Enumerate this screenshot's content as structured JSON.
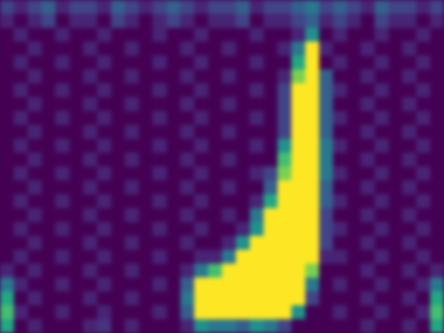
{
  "chart_data": {
    "type": "heatmap",
    "tick_labels": false,
    "color": "viridis",
    "color_range": [
      0,
      1
    ],
    "cells": [
      [
        0.2,
        0.1,
        0.2,
        0.3,
        0.1,
        0.2,
        0.2,
        0.1,
        0.3,
        0.2,
        0.1,
        0.2,
        0.3,
        0.2,
        0.1,
        0.2,
        0.2,
        0.3,
        0.1,
        0.2,
        0.2,
        0.3,
        0.4,
        0.2,
        0.3,
        0.2,
        0.1,
        0.3,
        0.2,
        0.2,
        0.1,
        0.2
      ],
      [
        0.1,
        0,
        0.1,
        0.2,
        0,
        0.1,
        0.1,
        0,
        0.2,
        0.1,
        0,
        0.1,
        0.2,
        0.1,
        0,
        0.1,
        0.1,
        0.2,
        0,
        0.1,
        0.1,
        0.2,
        0.3,
        0.1,
        0.2,
        0.1,
        0,
        0.2,
        0.1,
        0.1,
        0,
        0.1
      ],
      [
        0,
        0.1,
        0,
        0,
        0.1,
        0,
        0,
        0.1,
        0,
        0,
        0,
        0.1,
        0,
        0,
        0.1,
        0,
        0,
        0,
        0.1,
        0,
        0,
        0.1,
        0.5,
        0,
        0.1,
        0,
        0,
        0.1,
        0,
        0,
        0.1,
        0
      ],
      [
        0,
        0,
        0.1,
        0,
        0,
        0,
        0.1,
        0,
        0,
        0.1,
        0,
        0,
        0,
        0.1,
        0,
        0,
        0.1,
        0,
        0,
        0,
        0.1,
        0.4,
        1,
        0.1,
        0,
        0,
        0.1,
        0,
        0,
        0.1,
        0,
        0
      ],
      [
        0,
        0.1,
        0,
        0,
        0.1,
        0,
        0,
        0.1,
        0,
        0,
        0,
        0.1,
        0,
        0,
        0.1,
        0,
        0,
        0,
        0.1,
        0,
        0,
        0.6,
        1,
        0,
        0.1,
        0,
        0,
        0.1,
        0,
        0,
        0.1,
        0
      ],
      [
        0,
        0,
        0.1,
        0,
        0,
        0,
        0.1,
        0,
        0,
        0.1,
        0,
        0,
        0,
        0.1,
        0,
        0,
        0.1,
        0,
        0,
        0,
        0.1,
        0.8,
        1,
        0.3,
        0,
        0,
        0.1,
        0,
        0,
        0.1,
        0,
        0
      ],
      [
        0,
        0.1,
        0,
        0,
        0.1,
        0,
        0,
        0.1,
        0,
        0,
        0,
        0.1,
        0,
        0,
        0.1,
        0,
        0,
        0,
        0.1,
        0,
        0.2,
        1,
        1,
        0.3,
        0.1,
        0,
        0,
        0.1,
        0,
        0,
        0.1,
        0
      ],
      [
        0,
        0,
        0.1,
        0,
        0,
        0,
        0.1,
        0,
        0,
        0.1,
        0,
        0,
        0,
        0.1,
        0,
        0,
        0.1,
        0,
        0,
        0,
        0.2,
        1,
        1,
        0.3,
        0,
        0,
        0.1,
        0,
        0,
        0.1,
        0,
        0
      ],
      [
        0,
        0.1,
        0,
        0,
        0.1,
        0,
        0,
        0.1,
        0,
        0,
        0,
        0.1,
        0,
        0,
        0.1,
        0,
        0,
        0,
        0.1,
        0,
        0.2,
        1,
        1,
        0.3,
        0.1,
        0,
        0,
        0.1,
        0,
        0,
        0.1,
        0
      ],
      [
        0,
        0,
        0.1,
        0,
        0,
        0,
        0.1,
        0,
        0,
        0.1,
        0,
        0,
        0,
        0.1,
        0,
        0,
        0.1,
        0,
        0,
        0,
        0.2,
        1,
        1,
        0.3,
        0,
        0,
        0.1,
        0,
        0,
        0.1,
        0,
        0
      ],
      [
        0,
        0.1,
        0,
        0,
        0.1,
        0,
        0,
        0.1,
        0,
        0,
        0,
        0.1,
        0,
        0,
        0.1,
        0,
        0,
        0,
        0.1,
        0,
        0.5,
        1,
        1,
        0.4,
        0.1,
        0,
        0,
        0.1,
        0,
        0,
        0.1,
        0
      ],
      [
        0,
        0,
        0.1,
        0,
        0,
        0,
        0.1,
        0,
        0,
        0.1,
        0,
        0,
        0,
        0.1,
        0,
        0,
        0.1,
        0,
        0,
        0,
        0.7,
        1,
        1,
        0.4,
        0,
        0,
        0.1,
        0,
        0,
        0.1,
        0,
        0
      ],
      [
        0,
        0.1,
        0,
        0,
        0.1,
        0,
        0,
        0.1,
        0,
        0,
        0,
        0.1,
        0,
        0,
        0.1,
        0,
        0,
        0,
        0.1,
        0.2,
        0.8,
        1,
        1,
        0.4,
        0.1,
        0,
        0,
        0.1,
        0,
        0,
        0.1,
        0
      ],
      [
        0,
        0,
        0.1,
        0,
        0,
        0,
        0.1,
        0,
        0,
        0.1,
        0,
        0,
        0,
        0.1,
        0,
        0,
        0.1,
        0,
        0,
        0.3,
        1,
        1,
        1,
        0.3,
        0,
        0,
        0.1,
        0,
        0,
        0.1,
        0,
        0
      ],
      [
        0,
        0.1,
        0,
        0,
        0.1,
        0,
        0,
        0.1,
        0,
        0,
        0,
        0.1,
        0,
        0,
        0.1,
        0,
        0,
        0,
        0.1,
        0.6,
        1,
        1,
        1,
        0.3,
        0.1,
        0,
        0,
        0.1,
        0,
        0,
        0.1,
        0
      ],
      [
        0,
        0,
        0.1,
        0,
        0,
        0,
        0.1,
        0,
        0,
        0.1,
        0,
        0,
        0,
        0.1,
        0,
        0,
        0.1,
        0,
        0.4,
        1,
        1,
        1,
        1,
        0.2,
        0,
        0,
        0.1,
        0,
        0,
        0.1,
        0,
        0
      ],
      [
        0,
        0.1,
        0,
        0,
        0.1,
        0,
        0,
        0.1,
        0,
        0,
        0,
        0.1,
        0,
        0,
        0.1,
        0,
        0,
        0.1,
        0.5,
        1,
        1,
        1,
        1,
        0.2,
        0.1,
        0,
        0,
        0.1,
        0,
        0,
        0.1,
        0
      ],
      [
        0,
        0,
        0.1,
        0,
        0,
        0,
        0.1,
        0,
        0,
        0.1,
        0,
        0,
        0,
        0.1,
        0,
        0,
        0.1,
        0.5,
        1,
        1,
        1,
        1,
        1,
        0.2,
        0,
        0,
        0.1,
        0,
        0,
        0.1,
        0,
        0
      ],
      [
        0,
        0.1,
        0,
        0,
        0.1,
        0,
        0,
        0.1,
        0,
        0,
        0,
        0.1,
        0,
        0,
        0.1,
        0.1,
        0.4,
        1,
        1,
        1,
        1,
        1,
        1,
        0.1,
        0.1,
        0,
        0,
        0.1,
        0,
        0,
        0.1,
        0
      ],
      [
        0.1,
        0,
        0.1,
        0,
        0,
        0,
        0.1,
        0,
        0,
        0.1,
        0,
        0,
        0,
        0.1,
        0.4,
        0.7,
        1,
        1,
        1,
        1,
        1,
        1,
        0.8,
        0,
        0,
        0,
        0.1,
        0,
        0,
        0.1,
        0,
        0.1
      ],
      [
        0.4,
        0.1,
        0,
        0,
        0.1,
        0,
        0,
        0.1,
        0,
        0,
        0,
        0.1,
        0,
        0.3,
        1,
        1,
        1,
        1,
        1,
        1,
        1,
        1,
        0.4,
        0,
        0.1,
        0,
        0,
        0.1,
        0,
        0,
        0.1,
        0.4
      ],
      [
        0.6,
        0,
        0.1,
        0,
        0,
        0,
        0.1,
        0,
        0,
        0.1,
        0,
        0,
        0,
        0.4,
        1,
        1,
        1,
        1,
        1,
        1,
        1,
        1,
        0.2,
        0,
        0,
        0,
        0.1,
        0,
        0,
        0.1,
        0,
        0.6
      ],
      [
        0.7,
        0.1,
        0,
        0,
        0.1,
        0,
        0,
        0.1,
        0,
        0,
        0,
        0.1,
        0,
        0.3,
        1,
        1,
        1,
        1,
        1,
        1,
        1,
        0.5,
        0,
        0,
        0.1,
        0,
        0,
        0.1,
        0,
        0,
        0.1,
        0.7
      ],
      [
        0.6,
        0,
        0.1,
        0,
        0,
        0,
        0.1,
        0.15,
        0,
        0.1,
        0,
        0,
        0,
        0.1,
        0.5,
        0.4,
        0.4,
        0.3,
        0.5,
        0.4,
        0.2,
        0,
        0,
        0,
        0,
        0,
        0.1,
        0,
        0,
        0.1,
        0,
        0.6
      ]
    ]
  }
}
